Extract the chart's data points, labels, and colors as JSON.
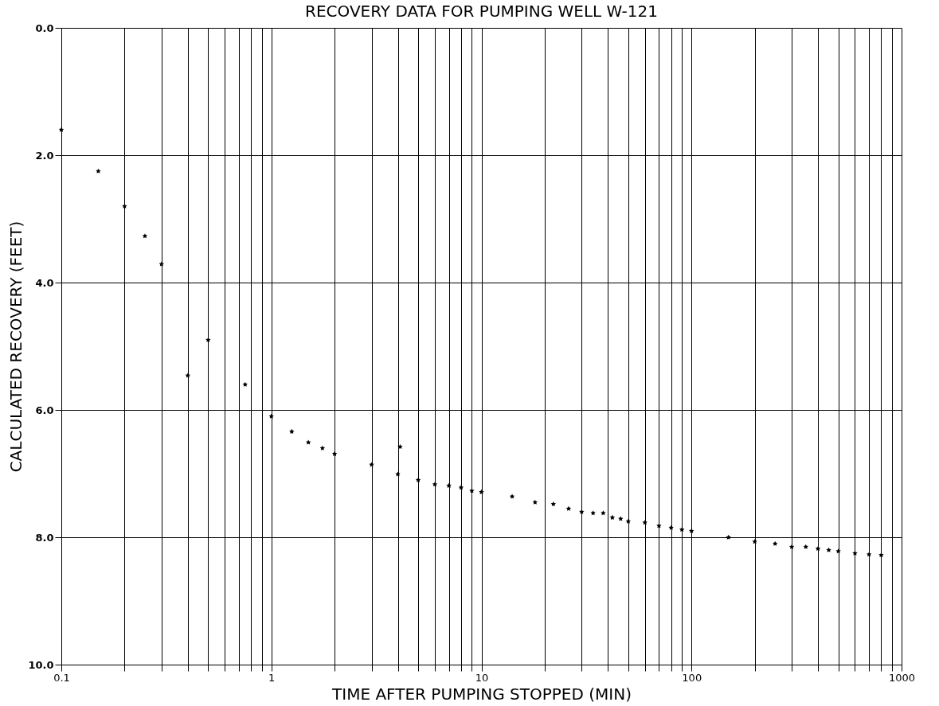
{
  "chart_data": {
    "type": "scatter",
    "title": "RECOVERY DATA FOR PUMPING WELL W-121",
    "xlabel": "TIME AFTER PUMPING STOPPED (MIN)",
    "ylabel": "CALCULATED RECOVERY (FEET)",
    "log": "x",
    "grid": true,
    "marker": "star",
    "legend": false,
    "xlim": [
      0.1,
      1000
    ],
    "ylim": [
      10,
      0
    ],
    "xticks": [
      {
        "value": 0.1,
        "label": "0.1"
      },
      {
        "value": 0.2,
        "label": null
      },
      {
        "value": 0.3,
        "label": null
      },
      {
        "value": 0.4,
        "label": null
      },
      {
        "value": 0.5,
        "label": null
      },
      {
        "value": 0.6,
        "label": null
      },
      {
        "value": 0.7,
        "label": null
      },
      {
        "value": 0.8,
        "label": null
      },
      {
        "value": 0.9,
        "label": null
      },
      {
        "value": 1,
        "label": "1"
      },
      {
        "value": 2,
        "label": null
      },
      {
        "value": 3,
        "label": null
      },
      {
        "value": 4,
        "label": null
      },
      {
        "value": 5,
        "label": null
      },
      {
        "value": 6,
        "label": null
      },
      {
        "value": 7,
        "label": null
      },
      {
        "value": 8,
        "label": null
      },
      {
        "value": 9,
        "label": null
      },
      {
        "value": 10,
        "label": "10"
      },
      {
        "value": 20,
        "label": null
      },
      {
        "value": 30,
        "label": null
      },
      {
        "value": 40,
        "label": null
      },
      {
        "value": 50,
        "label": null
      },
      {
        "value": 60,
        "label": null
      },
      {
        "value": 70,
        "label": null
      },
      {
        "value": 80,
        "label": null
      },
      {
        "value": 90,
        "label": null
      },
      {
        "value": 100,
        "label": "100"
      },
      {
        "value": 200,
        "label": null
      },
      {
        "value": 300,
        "label": null
      },
      {
        "value": 400,
        "label": null
      },
      {
        "value": 500,
        "label": null
      },
      {
        "value": 600,
        "label": null
      },
      {
        "value": 700,
        "label": null
      },
      {
        "value": 800,
        "label": null
      },
      {
        "value": 900,
        "label": null
      },
      {
        "value": 1000,
        "label": "1000"
      }
    ],
    "yticks": [
      {
        "value": 0,
        "label": "0.0"
      },
      {
        "value": 2,
        "label": "2.0"
      },
      {
        "value": 4,
        "label": "4.0"
      },
      {
        "value": 6,
        "label": "6.0"
      },
      {
        "value": 8,
        "label": "8.0"
      },
      {
        "value": 10,
        "label": "10.0"
      }
    ],
    "series": [
      {
        "color": "#000000",
        "x": [
          0.1,
          0.15,
          0.2,
          0.25,
          0.3,
          0.4,
          0.5,
          0.75,
          1,
          1.25,
          1.5,
          1.75,
          2,
          3,
          4,
          4.1,
          5,
          6,
          7,
          8,
          9,
          10,
          14,
          18,
          22,
          26,
          30,
          34,
          38,
          42,
          46,
          50,
          60,
          70,
          80,
          90,
          100,
          150,
          200,
          250,
          300,
          350,
          400,
          450,
          500,
          600,
          700,
          800
        ],
        "values": [
          1.6,
          2.25,
          2.8,
          3.27,
          3.71,
          5.46,
          4.9,
          5.6,
          6.1,
          6.34,
          6.51,
          6.6,
          6.69,
          6.86,
          7.01,
          6.58,
          7.1,
          7.17,
          7.19,
          7.22,
          7.27,
          7.29,
          7.36,
          7.45,
          7.48,
          7.55,
          7.6,
          7.62,
          7.62,
          7.69,
          7.71,
          7.75,
          7.77,
          7.82,
          7.85,
          7.88,
          7.9,
          8.0,
          8.07,
          8.1,
          8.15,
          8.15,
          8.18,
          8.2,
          8.22,
          8.25,
          8.27,
          8.28
        ]
      }
    ]
  }
}
